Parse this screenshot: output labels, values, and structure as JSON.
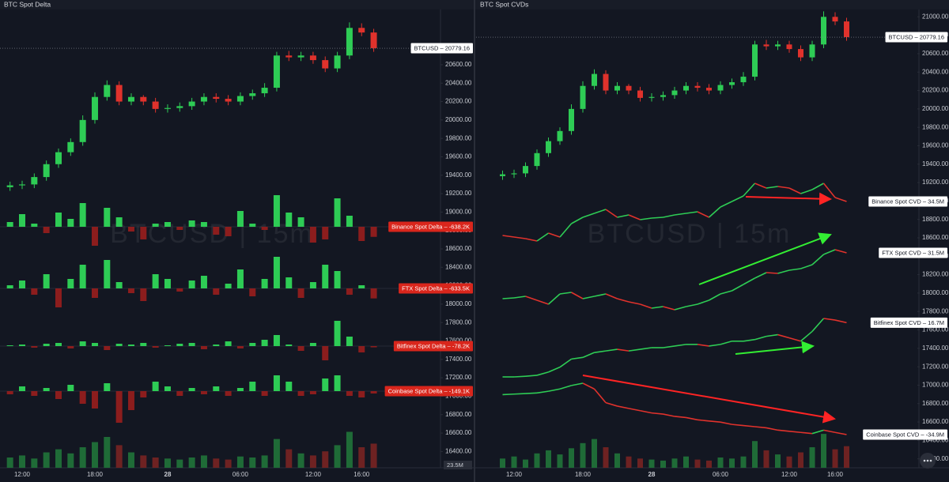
{
  "chart_data": [
    {
      "type": "candlestick",
      "title": "BTC Spot Delta",
      "watermark": "BTCUSD  |  15m",
      "categories": [
        null,
        "12:00",
        null,
        null,
        null,
        null,
        null,
        "18:00",
        null,
        null,
        null,
        null,
        null,
        "28",
        null,
        null,
        null,
        null,
        null,
        "06:00",
        null,
        null,
        null,
        null,
        null,
        "12:00",
        null,
        null,
        null,
        "16:00",
        null
      ],
      "open": [
        19270,
        19290,
        19300,
        19380,
        19520,
        19650,
        19760,
        20000,
        20250,
        20380,
        20200,
        20250,
        20200,
        20120,
        20130,
        20150,
        20200,
        20250,
        20230,
        20200,
        20260,
        20290,
        20350,
        20700,
        20680,
        20700,
        20650,
        20560,
        20700,
        21000,
        20950
      ],
      "high": [
        19330,
        19340,
        19420,
        19560,
        19690,
        19800,
        20050,
        20300,
        20430,
        20420,
        20290,
        20270,
        20240,
        20170,
        20190,
        20240,
        20290,
        20290,
        20270,
        20300,
        20330,
        20400,
        20740,
        20750,
        20740,
        20740,
        20690,
        20740,
        21060,
        21050,
        20990
      ],
      "low": [
        19230,
        19250,
        19260,
        19340,
        19480,
        19610,
        19720,
        19960,
        20210,
        20160,
        20160,
        20160,
        20080,
        20080,
        20090,
        20110,
        20160,
        20190,
        20160,
        20160,
        20220,
        20250,
        20310,
        20640,
        20640,
        20610,
        20520,
        20520,
        20660,
        20910,
        20740
      ],
      "close": [
        19290,
        19300,
        19380,
        19520,
        19650,
        19760,
        20000,
        20250,
        20380,
        20200,
        20250,
        20200,
        20120,
        20130,
        20150,
        20200,
        20250,
        20230,
        20200,
        20260,
        20290,
        20350,
        20700,
        20680,
        20700,
        20650,
        20560,
        20700,
        21000,
        20950,
        20780
      ],
      "ylim": [
        16240,
        21200
      ],
      "yticks": [
        {
          "value": 20600,
          "label": "20600.00"
        },
        {
          "value": 20400,
          "label": "20400.00"
        },
        {
          "value": 20200,
          "label": "20200.00"
        },
        {
          "value": 20000,
          "label": "20000.00"
        },
        {
          "value": 19800,
          "label": "19800.00"
        },
        {
          "value": 19600,
          "label": "19600.00"
        },
        {
          "value": 19400,
          "label": "19400.00"
        },
        {
          "value": 19200,
          "label": "19200.00"
        },
        {
          "value": 19000,
          "label": "19000.00"
        },
        {
          "value": 18800,
          "label": "18800.00"
        },
        {
          "value": 18600,
          "label": "18600.00"
        },
        {
          "value": 18400,
          "label": "18400.00"
        },
        {
          "value": 18200,
          "label": "18200.00"
        },
        {
          "value": 18000,
          "label": "18000.00"
        },
        {
          "value": 17800,
          "label": "17800.00"
        },
        {
          "value": 17600,
          "label": "17600.00"
        },
        {
          "value": 17400,
          "label": "17400.00"
        },
        {
          "value": 17200,
          "label": "17200.00"
        },
        {
          "value": 17000,
          "label": "17000.00"
        },
        {
          "value": 16800,
          "label": "16800.00"
        },
        {
          "value": 16600,
          "label": "16600.00"
        },
        {
          "value": 16400,
          "label": "16400.00"
        }
      ],
      "price_tag": {
        "value": 20779.16,
        "label": "BTCUSD  –  20779.16"
      },
      "colors": {
        "up": "#2ecc55",
        "down": "#e0322c",
        "delta_up": "#2ecc55",
        "delta_down": "#8c1d1d",
        "tag": "#d9261c",
        "volume_up": "#1f6b37",
        "volume_down": "#6e2222"
      },
      "deltas": [
        {
          "label": "Binance Spot Delta  –  -638.2K",
          "values": [
            300,
            800,
            200,
            -400,
            900,
            500,
            1500,
            -1200,
            1200,
            600,
            -300,
            -800,
            200,
            300,
            -200,
            400,
            300,
            -500,
            -600,
            1000,
            200,
            -200,
            2000,
            900,
            600,
            -1000,
            -800,
            1800,
            700,
            -900,
            -638.2
          ]
        },
        {
          "label": "FTX Spot Delta  –  -633.5K",
          "values": [
            200,
            500,
            -400,
            900,
            -1200,
            600,
            1500,
            -600,
            1800,
            400,
            -300,
            -800,
            900,
            600,
            -200,
            500,
            800,
            -400,
            300,
            1200,
            -500,
            600,
            2000,
            700,
            -600,
            400,
            1500,
            1100,
            -400,
            200,
            -633.5
          ]
        },
        {
          "label": "Bitfinex Spot Delta  –  -78.2K",
          "values": [
            50,
            100,
            -100,
            150,
            200,
            -150,
            300,
            200,
            -250,
            150,
            100,
            200,
            -100,
            50,
            150,
            200,
            -200,
            100,
            300,
            -150,
            200,
            400,
            700,
            100,
            -300,
            200,
            -900,
            1600,
            600,
            -400,
            -78.2
          ]
        },
        {
          "label": "Coinbase Spot Delta  –  -149.1K",
          "values": [
            -200,
            300,
            -300,
            200,
            -500,
            400,
            -800,
            -1100,
            500,
            -2000,
            -1200,
            -400,
            600,
            300,
            -300,
            200,
            -200,
            300,
            -300,
            200,
            600,
            -300,
            1000,
            600,
            -300,
            -200,
            800,
            1000,
            -300,
            -400,
            -149.1
          ]
        }
      ],
      "volume": {
        "label": "23.5M",
        "values": [
          10,
          12,
          9,
          15,
          18,
          14,
          20,
          25,
          30,
          22,
          15,
          12,
          10,
          9,
          8,
          10,
          12,
          9,
          8,
          11,
          10,
          12,
          28,
          18,
          14,
          12,
          16,
          22,
          35,
          20,
          23.5
        ]
      }
    },
    {
      "type": "candlestick",
      "title": "BTC Spot CVDs",
      "watermark": "BTCUSD  |  15m",
      "categories": [
        null,
        "12:00",
        null,
        null,
        null,
        null,
        null,
        "18:00",
        null,
        null,
        null,
        null,
        null,
        "28",
        null,
        null,
        null,
        null,
        null,
        "06:00",
        null,
        null,
        null,
        null,
        null,
        "12:00",
        null,
        null,
        null,
        "16:00",
        null
      ],
      "open": [
        19270,
        19290,
        19300,
        19380,
        19520,
        19650,
        19760,
        20000,
        20250,
        20380,
        20200,
        20250,
        20200,
        20120,
        20130,
        20150,
        20200,
        20250,
        20230,
        20200,
        20260,
        20290,
        20350,
        20700,
        20680,
        20700,
        20650,
        20560,
        20700,
        21000,
        20950
      ],
      "high": [
        19330,
        19340,
        19420,
        19560,
        19690,
        19800,
        20050,
        20300,
        20430,
        20420,
        20290,
        20270,
        20240,
        20170,
        20190,
        20240,
        20290,
        20290,
        20270,
        20300,
        20330,
        20400,
        20740,
        20750,
        20740,
        20740,
        20690,
        20740,
        21060,
        21050,
        20990
      ],
      "low": [
        19230,
        19250,
        19260,
        19340,
        19480,
        19610,
        19720,
        19960,
        20210,
        20160,
        20160,
        20160,
        20080,
        20080,
        20090,
        20110,
        20160,
        20190,
        20160,
        20160,
        20220,
        20250,
        20310,
        20640,
        20640,
        20610,
        20520,
        20520,
        20660,
        20910,
        20740
      ],
      "close": [
        19290,
        19300,
        19380,
        19520,
        19650,
        19760,
        20000,
        20250,
        20380,
        20200,
        20250,
        20200,
        20120,
        20130,
        20150,
        20200,
        20250,
        20230,
        20200,
        20260,
        20290,
        20350,
        20700,
        20680,
        20700,
        20650,
        20560,
        20700,
        21000,
        20950,
        20780
      ],
      "ylim": [
        16120,
        21080
      ],
      "yticks": [
        {
          "value": 21000,
          "label": "21000.00"
        },
        {
          "value": 20800,
          "label": "20800.00"
        },
        {
          "value": 20600,
          "label": "20600.00"
        },
        {
          "value": 20400,
          "label": "20400.00"
        },
        {
          "value": 20200,
          "label": "20200.00"
        },
        {
          "value": 20000,
          "label": "20000.00"
        },
        {
          "value": 19800,
          "label": "19800.00"
        },
        {
          "value": 19600,
          "label": "19600.00"
        },
        {
          "value": 19400,
          "label": "19400.00"
        },
        {
          "value": 19200,
          "label": "19200.00"
        },
        {
          "value": 19000,
          "label": "19000.00"
        },
        {
          "value": 18800,
          "label": "18800.00"
        },
        {
          "value": 18600,
          "label": "18600.00"
        },
        {
          "value": 18400,
          "label": "18400.00"
        },
        {
          "value": 18200,
          "label": "18200.00"
        },
        {
          "value": 18000,
          "label": "18000.00"
        },
        {
          "value": 17800,
          "label": "17800.00"
        },
        {
          "value": 17600,
          "label": "17600.00"
        },
        {
          "value": 17400,
          "label": "17400.00"
        },
        {
          "value": 17200,
          "label": "17200.00"
        },
        {
          "value": 17000,
          "label": "17000.00"
        },
        {
          "value": 16800,
          "label": "16800.00"
        },
        {
          "value": 16600,
          "label": "16600.00"
        },
        {
          "value": 16400,
          "label": "16400.00"
        },
        {
          "value": 16200,
          "label": "16200.00"
        }
      ],
      "price_tag": {
        "value": 20779.16,
        "label": "BTCUSD  –  20779.16"
      },
      "colors": {
        "up": "#2ecc55",
        "down": "#e0322c",
        "cvd_up": "#2ecc55",
        "cvd_down": "#e0322c",
        "tag": "#ffffff",
        "volume_up": "#1f6b37",
        "volume_down": "#6e2222"
      },
      "cvds": [
        {
          "label": "Binance Spot CVD  –  34.5M",
          "values": [
            13,
            12,
            11,
            9.5,
            14.5,
            12,
            20.5,
            24.5,
            27,
            29.5,
            24.5,
            26,
            23,
            24,
            24.5,
            26,
            27,
            28,
            24.5,
            31,
            34.5,
            38,
            46,
            43,
            44,
            43,
            39.5,
            42,
            46,
            37,
            34.5
          ]
        },
        {
          "label": "FTX Spot CVD  –  31.5M",
          "values": [
            2.5,
            3,
            4,
            1.5,
            -1,
            5.5,
            6.5,
            2.5,
            4,
            5.5,
            2.5,
            0.5,
            -1,
            -3.5,
            -2.5,
            -4.5,
            -2.5,
            -1,
            1.5,
            5.5,
            7.5,
            11.5,
            15.5,
            19,
            18.5,
            20.5,
            21.5,
            24,
            30.5,
            33.5,
            31.5
          ]
        },
        {
          "label": "Bitfinex Spot CVD  –  16.7M",
          "values": [
            0,
            0,
            0.2,
            0.5,
            1.5,
            3,
            5.5,
            6,
            7.5,
            8,
            8.5,
            8,
            8.5,
            9,
            9,
            9.5,
            10,
            10,
            9.5,
            10,
            11,
            11,
            11.5,
            12.5,
            13,
            12,
            11,
            14,
            18,
            17.5,
            16.7
          ]
        },
        {
          "label": "Coinbase Spot CVD  –  -34.9M",
          "values": [
            0,
            0.5,
            1,
            1.5,
            3,
            5,
            8,
            10,
            5,
            -7,
            -10,
            -12,
            -14,
            -16,
            -17,
            -19,
            -20,
            -22,
            -23,
            -24,
            -26,
            -27,
            -28,
            -29,
            -31,
            -32,
            -33,
            -34,
            -31,
            -33,
            -34.9
          ]
        }
      ],
      "volume": {
        "values": [
          9,
          11,
          8,
          14,
          17,
          13,
          19,
          24,
          28,
          20,
          14,
          11,
          9,
          8,
          7,
          9,
          11,
          8,
          7,
          10,
          9,
          11,
          26,
          17,
          13,
          11,
          15,
          20,
          33,
          18,
          21
        ]
      }
    }
  ]
}
